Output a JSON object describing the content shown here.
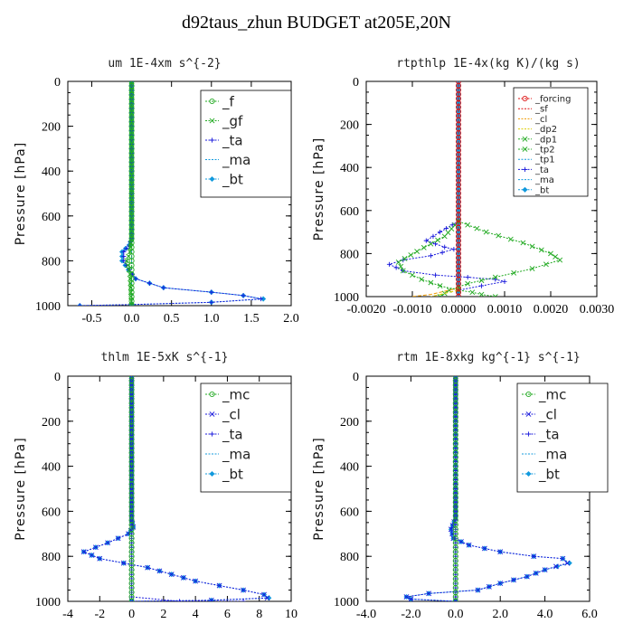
{
  "title": "d92taus_zhun  BUDGET at205E,20N",
  "colors": {
    "green": "#22aa22",
    "blue": "#1a1adc",
    "red": "#dd1111",
    "cyan": "#1199dd"
  },
  "chart_data": [
    {
      "type": "line",
      "title": "um   1E-4xm s^{-2}",
      "ylabel": "Pressure [hPa]",
      "xlim": [
        -0.8,
        2.0
      ],
      "ylim": [
        1000,
        0
      ],
      "xticks": [
        "-0.5",
        "0.0",
        "0.5",
        "1.0",
        "1.5",
        "2.0"
      ],
      "xtick_values": [
        -0.5,
        0,
        0.5,
        1.0,
        1.5,
        2.0
      ],
      "yticks": [
        "0",
        "200",
        "400",
        "600",
        "800",
        "1000"
      ],
      "ytick_values": [
        0,
        200,
        400,
        600,
        800,
        1000
      ],
      "legend": [
        "_f",
        "_gf",
        "_ta",
        "_ma",
        "_bt"
      ],
      "series": [
        {
          "name": "_f",
          "color": "#22aa22",
          "marker": "circle",
          "points": [
            [
              0,
              0
            ],
            [
              0,
              1000
            ]
          ]
        },
        {
          "name": "_gf",
          "color": "#22aa22",
          "marker": "x",
          "points": [
            [
              0,
              0
            ],
            [
              0,
              700
            ],
            [
              -0.02,
              760
            ],
            [
              -0.06,
              800
            ],
            [
              -0.02,
              860
            ],
            [
              0,
              1000
            ]
          ]
        },
        {
          "name": "_ta",
          "color": "#1a1adc",
          "marker": "plus",
          "points": [
            [
              0,
              0
            ],
            [
              0,
              700
            ],
            [
              -0.03,
              730
            ],
            [
              -0.1,
              760
            ],
            [
              -0.1,
              800
            ],
            [
              -0.03,
              840
            ],
            [
              0.05,
              880
            ],
            [
              0.4,
              920
            ],
            [
              1.0,
              940
            ],
            [
              1.4,
              955
            ],
            [
              1.62,
              970
            ],
            [
              1.0,
              985
            ],
            [
              0,
              995
            ],
            [
              -0.65,
              1000
            ]
          ]
        },
        {
          "name": "_ma",
          "color": "#1199dd",
          "marker": "none",
          "points": [
            [
              0,
              0
            ],
            [
              0,
              1000
            ]
          ]
        },
        {
          "name": "_bt",
          "color": "#1199dd",
          "marker": "diamond",
          "points": [
            [
              0,
              0
            ],
            [
              0,
              700
            ],
            [
              -0.03,
              730
            ],
            [
              -0.12,
              760
            ],
            [
              -0.12,
              800
            ],
            [
              -0.04,
              840
            ],
            [
              0.05,
              880
            ],
            [
              0.4,
              920
            ],
            [
              1.0,
              940
            ],
            [
              1.4,
              955
            ],
            [
              1.65,
              970
            ],
            [
              1.0,
              985
            ],
            [
              0,
              995
            ],
            [
              -0.65,
              1000
            ]
          ]
        }
      ]
    },
    {
      "type": "line",
      "title": "rtpthlp   1E-4x(kg K)/(kg s)",
      "ylabel": "Pressure [hPa]",
      "xlim": [
        -0.002,
        0.003
      ],
      "ylim": [
        1000,
        0
      ],
      "xticks": [
        "-0.0020",
        "-0.0010",
        "0.0000",
        "0.0010",
        "0.0020",
        "0.0030"
      ],
      "xtick_values": [
        -0.002,
        -0.001,
        0,
        0.001,
        0.002,
        0.003
      ],
      "yticks": [
        "0",
        "200",
        "400",
        "600",
        "800",
        "1000"
      ],
      "ytick_values": [
        0,
        200,
        400,
        600,
        800,
        1000
      ],
      "legend": [
        "_forcing",
        "_sf",
        "_cl",
        "_dp2",
        "_dp1",
        "_tp2",
        "_tp1",
        "_ta",
        "_ma",
        "_bt"
      ],
      "series": [
        {
          "name": "_forcing",
          "color": "#dd1111",
          "marker": "circle",
          "points": [
            [
              0,
              0
            ],
            [
              0,
              1000
            ]
          ]
        },
        {
          "name": "_sf",
          "color": "#dd1111",
          "marker": "none",
          "points": [
            [
              0,
              0
            ],
            [
              0,
              1000
            ]
          ]
        },
        {
          "name": "_cl",
          "color": "#ee9900",
          "marker": "none",
          "points": [
            [
              0,
              960
            ],
            [
              -0.0006,
              990
            ],
            [
              -0.001,
              1000
            ]
          ]
        },
        {
          "name": "_dp2",
          "color": "#ddcc00",
          "marker": "none",
          "points": [
            [
              0,
              970
            ],
            [
              -0.0004,
              990
            ],
            [
              -0.0006,
              1000
            ]
          ]
        },
        {
          "name": "_dp1",
          "color": "#22aa22",
          "marker": "x",
          "points": [
            [
              0,
              650
            ],
            [
              -0.0003,
              720
            ],
            [
              -0.0009,
              790
            ],
            [
              -0.0013,
              840
            ],
            [
              -0.0012,
              880
            ],
            [
              -0.0008,
              920
            ],
            [
              -0.0004,
              950
            ],
            [
              0,
              970
            ],
            [
              0.0003,
              980
            ],
            [
              0.0005,
              990
            ],
            [
              0.0008,
              1000
            ]
          ]
        },
        {
          "name": "_tp2",
          "color": "#22aa22",
          "marker": "x",
          "points": [
            [
              0,
              650
            ],
            [
              0.0006,
              700
            ],
            [
              0.0014,
              750
            ],
            [
              0.002,
              800
            ],
            [
              0.0022,
              830
            ],
            [
              0.0016,
              870
            ],
            [
              0.0008,
              910
            ],
            [
              0.0002,
              940
            ],
            [
              -0.0002,
              970
            ],
            [
              -0.0004,
              1000
            ]
          ]
        },
        {
          "name": "_tp1",
          "color": "#1199dd",
          "marker": "none",
          "points": [
            [
              0,
              0
            ],
            [
              0,
              1000
            ]
          ]
        },
        {
          "name": "_ta",
          "color": "#1a1adc",
          "marker": "plus",
          "points": [
            [
              0,
              650
            ],
            [
              -0.0004,
              700
            ],
            [
              -0.0007,
              740
            ],
            [
              -0.0003,
              770
            ],
            [
              -0.0001,
              780
            ],
            [
              -0.0006,
              810
            ],
            [
              -0.0012,
              830
            ],
            [
              -0.0015,
              850
            ],
            [
              -0.0012,
              880
            ],
            [
              -0.0005,
              900
            ],
            [
              0.0002,
              910
            ],
            [
              0.0008,
              920
            ],
            [
              0.001,
              930
            ],
            [
              0.0005,
              950
            ],
            [
              0,
              970
            ]
          ]
        },
        {
          "name": "_ma",
          "color": "#1199dd",
          "marker": "none",
          "points": [
            [
              0,
              0
            ],
            [
              0,
              1000
            ]
          ]
        },
        {
          "name": "_bt",
          "color": "#1199dd",
          "marker": "diamond",
          "points": [
            [
              0,
              0
            ],
            [
              0,
              1000
            ]
          ]
        }
      ]
    },
    {
      "type": "line",
      "title": "thlm   1E-5xK s^{-1}",
      "ylabel": "Pressure [hPa]",
      "xlim": [
        -4,
        10
      ],
      "ylim": [
        1000,
        0
      ],
      "xticks": [
        "-4",
        "-2",
        "0",
        "2",
        "4",
        "6",
        "8",
        "10"
      ],
      "xtick_values": [
        -4,
        -2,
        0,
        2,
        4,
        6,
        8,
        10
      ],
      "yticks": [
        "0",
        "200",
        "400",
        "600",
        "800",
        "1000"
      ],
      "ytick_values": [
        0,
        200,
        400,
        600,
        800,
        1000
      ],
      "legend": [
        "_mc",
        "_cl",
        "_ta",
        "_ma",
        "_bt"
      ],
      "series": [
        {
          "name": "_mc",
          "color": "#22aa22",
          "marker": "circle",
          "points": [
            [
              0,
              0
            ],
            [
              0,
              1000
            ]
          ]
        },
        {
          "name": "_cl",
          "color": "#1a1adc",
          "marker": "x",
          "points": [
            [
              0,
              0
            ],
            [
              0,
              640
            ],
            [
              0.1,
              670
            ],
            [
              -0.2,
              700
            ],
            [
              -1.5,
              740
            ],
            [
              -3.0,
              780
            ],
            [
              -2.0,
              810
            ],
            [
              -0.5,
              830
            ],
            [
              1.0,
              850
            ],
            [
              2.5,
              880
            ],
            [
              4.0,
              910
            ],
            [
              5.5,
              930
            ],
            [
              7.0,
              950
            ],
            [
              8.3,
              970
            ],
            [
              8.5,
              985
            ],
            [
              5,
              995
            ],
            [
              0,
              1000
            ]
          ]
        },
        {
          "name": "_ta",
          "color": "#1a1adc",
          "marker": "plus",
          "points": [
            [
              0,
              0
            ],
            [
              0,
              980
            ],
            [
              3,
              1000
            ],
            [
              7,
              1000
            ]
          ]
        },
        {
          "name": "_ma",
          "color": "#1199dd",
          "marker": "none",
          "points": [
            [
              0,
              0
            ],
            [
              0,
              1000
            ]
          ]
        },
        {
          "name": "_bt",
          "color": "#1199dd",
          "marker": "diamond",
          "points": [
            [
              0,
              0
            ],
            [
              0,
              640
            ],
            [
              0.1,
              670
            ],
            [
              -0.2,
              700
            ],
            [
              -1.5,
              740
            ],
            [
              -3.0,
              780
            ],
            [
              -2.0,
              810
            ],
            [
              -0.5,
              830
            ],
            [
              1.0,
              850
            ],
            [
              2.5,
              880
            ],
            [
              4.0,
              910
            ],
            [
              5.5,
              930
            ],
            [
              7.0,
              950
            ],
            [
              8.3,
              970
            ],
            [
              8.6,
              985
            ],
            [
              5,
              995
            ],
            [
              0,
              1000
            ]
          ]
        }
      ]
    },
    {
      "type": "line",
      "title": "rtm   1E-8xkg kg^{-1} s^{-1}",
      "ylabel": "Pressure [hPa]",
      "xlim": [
        -4.0,
        6.0
      ],
      "ylim": [
        1000,
        0
      ],
      "xticks": [
        "-4.0",
        "-2.0",
        "0.0",
        "2.0",
        "4.0",
        "6.0"
      ],
      "xtick_values": [
        -4,
        -2,
        0,
        2,
        4,
        6
      ],
      "yticks": [
        "0",
        "200",
        "400",
        "600",
        "800",
        "1000"
      ],
      "ytick_values": [
        0,
        200,
        400,
        600,
        800,
        1000
      ],
      "legend": [
        "_mc",
        "_cl",
        "_ta",
        "_ma",
        "_bt"
      ],
      "series": [
        {
          "name": "_mc",
          "color": "#22aa22",
          "marker": "circle",
          "points": [
            [
              0,
              0
            ],
            [
              0,
              1000
            ]
          ]
        },
        {
          "name": "_cl",
          "color": "#1a1adc",
          "marker": "x",
          "points": [
            [
              0,
              0
            ],
            [
              0,
              630
            ],
            [
              -0.2,
              680
            ],
            [
              -0.1,
              720
            ],
            [
              0.6,
              750
            ],
            [
              2.0,
              780
            ],
            [
              3.5,
              800
            ],
            [
              4.8,
              810
            ],
            [
              5.0,
              830
            ],
            [
              4.0,
              860
            ],
            [
              3.2,
              890
            ],
            [
              2.0,
              920
            ],
            [
              1.0,
              950
            ],
            [
              -1.2,
              965
            ],
            [
              -2.2,
              980
            ],
            [
              -2.0,
              990
            ],
            [
              0,
              1000
            ]
          ]
        },
        {
          "name": "_ta",
          "color": "#1a1adc",
          "marker": "plus",
          "points": [
            [
              0,
              0
            ],
            [
              0,
              1000
            ]
          ]
        },
        {
          "name": "_ma",
          "color": "#1199dd",
          "marker": "none",
          "points": [
            [
              0,
              0
            ],
            [
              0,
              1000
            ]
          ]
        },
        {
          "name": "_bt",
          "color": "#1199dd",
          "marker": "diamond",
          "points": [
            [
              0,
              0
            ],
            [
              0,
              630
            ],
            [
              -0.2,
              680
            ],
            [
              -0.1,
              720
            ],
            [
              0.6,
              750
            ],
            [
              2.0,
              780
            ],
            [
              3.5,
              800
            ],
            [
              4.8,
              810
            ],
            [
              5.1,
              830
            ],
            [
              4.0,
              860
            ],
            [
              3.2,
              890
            ],
            [
              2.0,
              920
            ],
            [
              1.0,
              950
            ],
            [
              -1.2,
              965
            ],
            [
              -2.2,
              980
            ],
            [
              -2.0,
              990
            ],
            [
              0,
              1000
            ]
          ]
        }
      ]
    }
  ]
}
